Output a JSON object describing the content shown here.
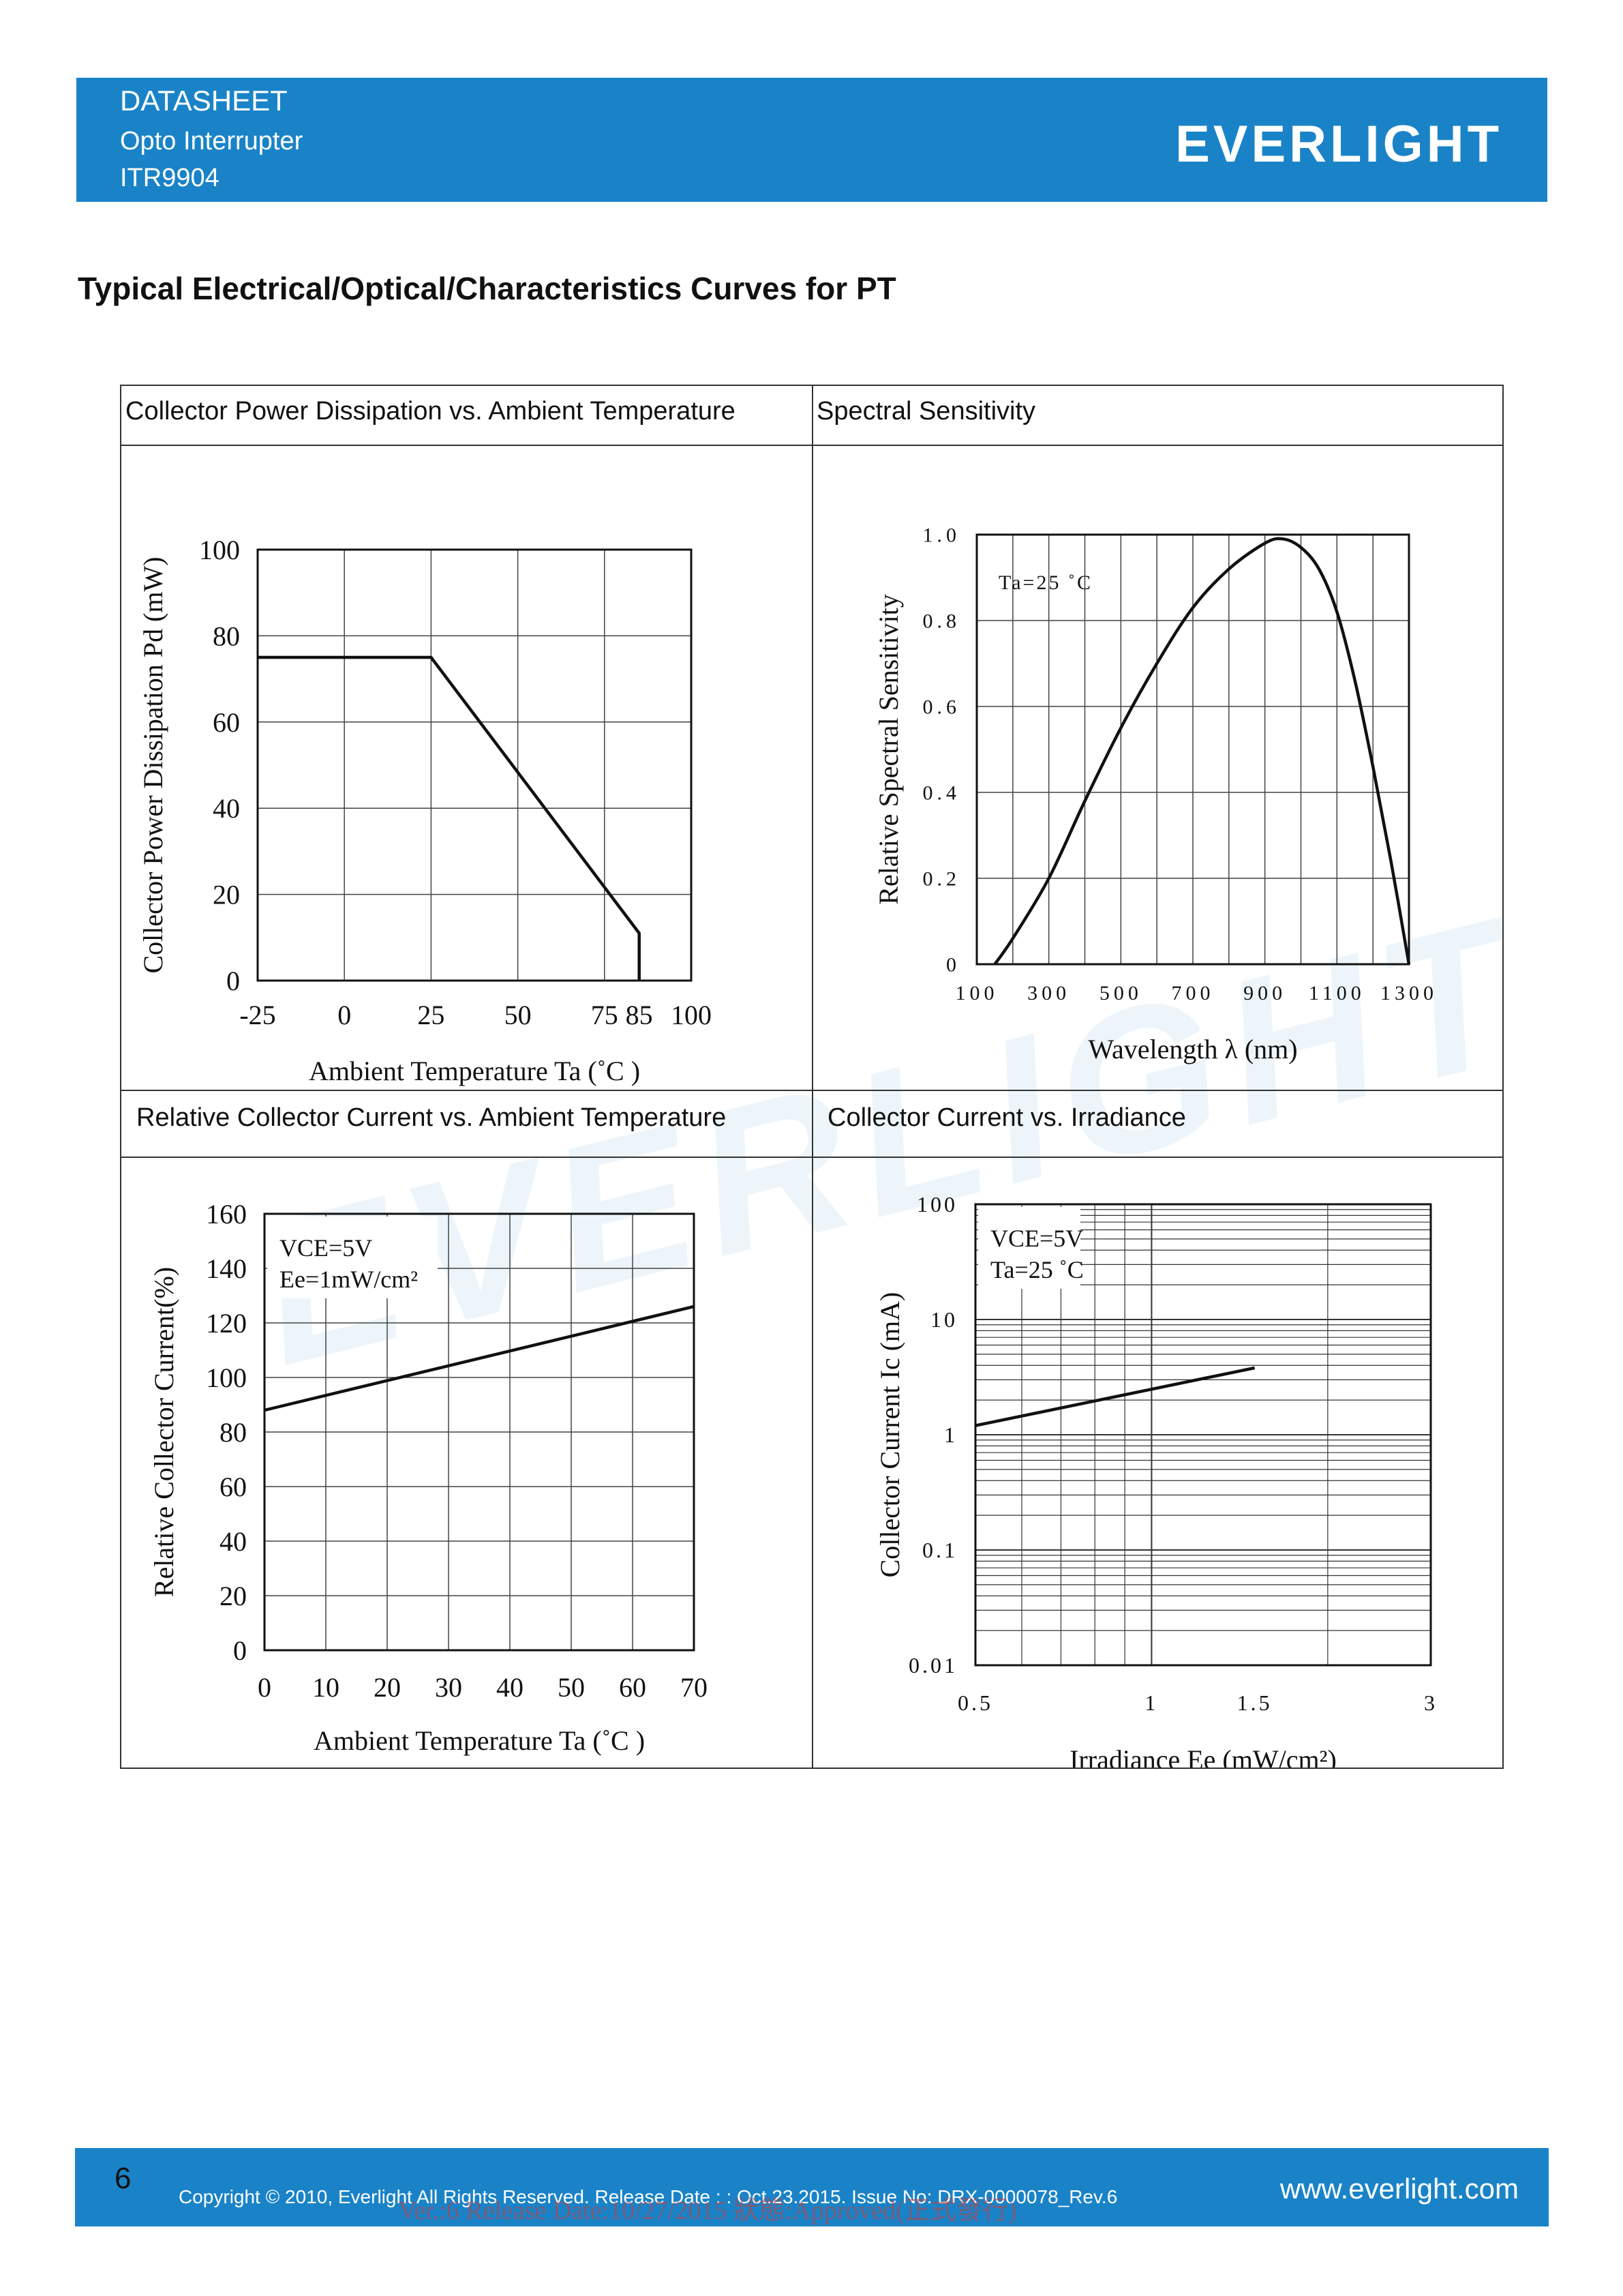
{
  "header": {
    "title": "DATASHEET",
    "subtitle": "Opto Interrupter",
    "part": "ITR9904",
    "logo": "EVERLIGHT"
  },
  "page_title": "Typical Electrical/Optical/Characteristics Curves for PT",
  "captions": {
    "c1": "Collector Power Dissipation vs. Ambient Temperature",
    "c2": "Spectral Sensitivity",
    "c3": "Relative Collector Current vs. Ambient Temperature",
    "c4": "Collector Current vs. Irradiance"
  },
  "chart_data": [
    {
      "type": "line",
      "xlabel": "Ambient Temperature Ta (˚C )",
      "ylabel": "Collector Power Dissipation Pd (mW)",
      "x_ticks": [
        "-25",
        "0",
        "25",
        "50",
        "75",
        "85",
        "100"
      ],
      "y_ticks": [
        "0",
        "20",
        "40",
        "60",
        "80",
        "100"
      ],
      "xlim": [
        -25,
        100
      ],
      "ylim": [
        0,
        100
      ],
      "grid": true,
      "x": [
        -25,
        25,
        85,
        85
      ],
      "y": [
        75,
        75,
        11,
        0
      ]
    },
    {
      "type": "line",
      "xlabel": "Wavelength λ (nm)",
      "ylabel": "Relative Spectral Sensitivity",
      "x_ticks": [
        "100",
        "300",
        "500",
        "700",
        "900",
        "1100",
        "1300"
      ],
      "y_ticks": [
        "0",
        "0.2",
        "0.4",
        "0.6",
        "0.8",
        "1.0"
      ],
      "xlim": [
        100,
        1300
      ],
      "ylim": [
        0,
        1.0
      ],
      "grid": true,
      "annotation": "Ta=25 ˚C",
      "x": [
        150,
        200,
        300,
        400,
        500,
        600,
        700,
        800,
        900,
        950,
        1000,
        1050,
        1100,
        1150,
        1200,
        1250,
        1300
      ],
      "y": [
        0.0,
        0.06,
        0.2,
        0.38,
        0.55,
        0.7,
        0.83,
        0.92,
        0.98,
        0.99,
        0.97,
        0.92,
        0.82,
        0.66,
        0.46,
        0.24,
        0.0
      ]
    },
    {
      "type": "line",
      "xlabel": "Ambient Temperature Ta (˚C )",
      "ylabel": "Relative Collector Current(%)",
      "x_ticks": [
        "0",
        "10",
        "20",
        "30",
        "40",
        "50",
        "60",
        "70"
      ],
      "y_ticks": [
        "0",
        "20",
        "40",
        "60",
        "80",
        "100",
        "120",
        "140",
        "160"
      ],
      "xlim": [
        0,
        70
      ],
      "ylim": [
        0,
        160
      ],
      "grid": true,
      "annotation_lines": [
        "VCE=5V",
        "Ee=1mW/cm²"
      ],
      "x": [
        0,
        70
      ],
      "y": [
        88,
        126
      ]
    },
    {
      "type": "line",
      "xlabel": "Irradiance Ee (mW/cm²)",
      "ylabel": "Collector Current Ic (mA)",
      "x_ticks": [
        "0.5",
        "1",
        "1.5",
        "3"
      ],
      "y_ticks": [
        "0.01",
        "0.1",
        "1",
        "10",
        "100"
      ],
      "xscale": "log",
      "yscale": "log",
      "xlim": [
        0.5,
        3
      ],
      "ylim": [
        0.01,
        100
      ],
      "grid": true,
      "annotation_lines": [
        "VCE=5V",
        "Ta=25 ˚C"
      ],
      "x": [
        0.5,
        1.5
      ],
      "y": [
        1.2,
        3.8
      ]
    }
  ],
  "watermark": "EVERLIGHT",
  "footer": {
    "page_number": "6",
    "copyright": "Copyright © 2010, Everlight All Rights Reserved. Release Date : : Oct.23.2015. Issue No: DRX-0000078_Rev.6",
    "website": "www.everlight.com",
    "stamp": "Ver.:6     Release Date:10/27/2015     狀態:Approved(正式發行)"
  },
  "colors": {
    "brand_blue": "#1a83c8"
  }
}
